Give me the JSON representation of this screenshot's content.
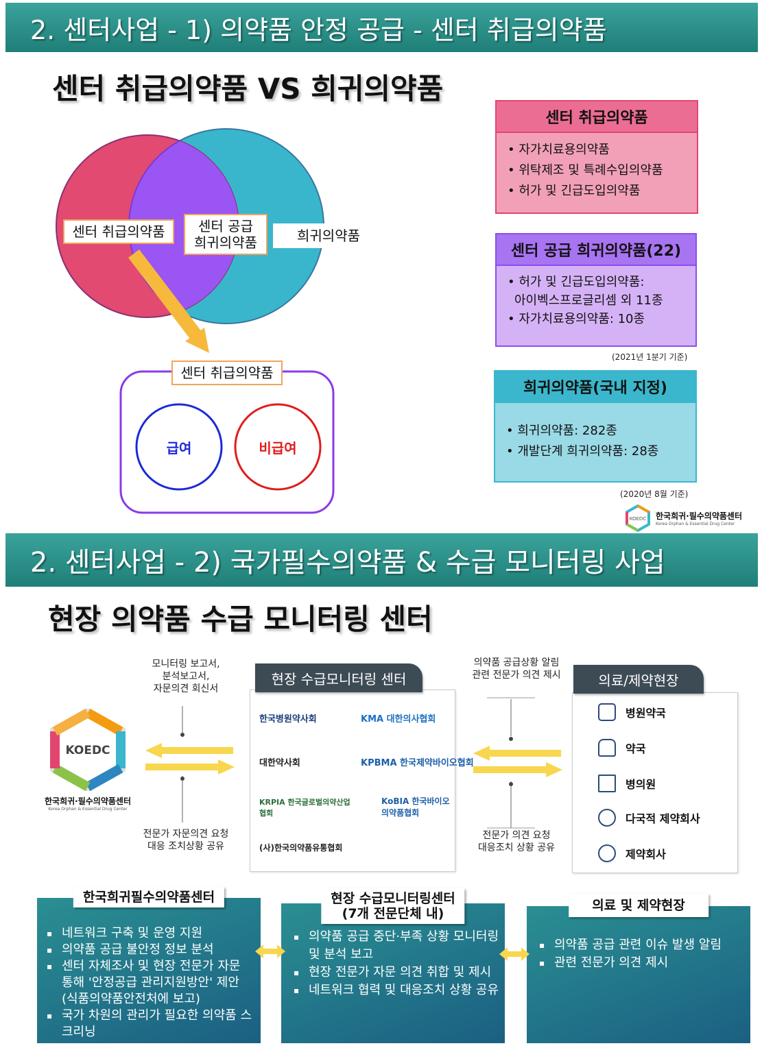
{
  "section1": {
    "banner": "2. 센터사업 - 1) 의약품 안정 공급 - 센터 취급의약품",
    "title": "센터 취급의약품 VS 희귀의약품",
    "venn": {
      "left_label": "센터 취급의약품",
      "center_label_line1": "센터 공급",
      "center_label_line2": "희귀의약품",
      "right_label": "희귀의약품",
      "bottom_box_label": "센터 취급의약품",
      "circle_blue": "급여",
      "circle_red": "비급여"
    },
    "box_pink": {
      "title": "센터 취급의약품",
      "items": [
        "자가치료용의약품",
        "위탁제조 및 특례수입의약품",
        "허가 및 긴급도입의약품"
      ]
    },
    "box_purple": {
      "title": "센터 공급 희귀의약품(22)",
      "item1_line1": "허가 및 긴급도입의약품:",
      "item1_line2": "아이벡스프로글리셈 외 11종",
      "item2": "자가치료용의약품: 10종",
      "note": "(2021년 1분기 기준)"
    },
    "box_cyan": {
      "title": "희귀의약품(국내 지정)",
      "items": [
        "희귀의약품: 282종",
        "개발단계 희귀의약품: 28종"
      ],
      "note": "(2020년 8월 기준)"
    },
    "logo_name": "한국희귀·필수의약품센터",
    "logo_sub": "Korea Orphan & Essential Drug Center",
    "logo_mark": "KOEDC"
  },
  "section2": {
    "banner": "2. 센터사업 - 2)  국가필수의약품 & 수급 모니터링 사업",
    "title": "현장 의약품 수급 모니터링 센터",
    "left_top_text": [
      "모니터링 보고서,",
      "분석보고서,",
      "자문의견 회신서"
    ],
    "left_bottom_text": [
      "전문가 자문의견 요청",
      "대응 조치상황 공유"
    ],
    "right_top_text": [
      "의약품 공급상황 알림",
      "관련 전문가 의견 제시"
    ],
    "right_bottom_text": [
      "전문가 의견 요청",
      "대응조치 상황 공유"
    ],
    "koedc_mark": "KOEDC",
    "koedc_name": "한국희귀·필수의약품센터",
    "koedc_sub": "Korea Orphan & Essential Drug Center",
    "center_tab": "현장 수급모니터링 센터",
    "orgs": [
      "한국병원약사회",
      "KMA 대한의사협회",
      "대한약사회",
      "KPBMA 한국제약바이오협회",
      "KRPIA 한국글로벌의약산업협회",
      "KoBIA 한국바이오의약품협회",
      "(사)한국의약품유통협회"
    ],
    "site_tab": "의료/제약현장",
    "sites": [
      "병원약국",
      "약국",
      "병의원",
      "다국적 제약회사",
      "제약회사"
    ],
    "panels": [
      {
        "tag": "한국희귀필수의약품센터",
        "items": [
          "네트워크 구축 및 운영 지원",
          "의약품 공급 불안정 정보 분석",
          "센터 자체조사 및 현장 전문가 자문 통해 '안정공급 관리지원방안' 제안(식품의약품안전처에 보고)",
          "국가 차원의 관리가 필요한 의약품 스크리닝"
        ]
      },
      {
        "tag_line1": "현장 수급모니터링센터",
        "tag_line2": "(7개 전문단체 내)",
        "items": [
          "의약품 공급 중단·부족 상황 모니터링 및 분석 보고",
          "현장 전문가 자문 의견 취합 및 제시",
          "네트워크 협력 및 대응조치 상황 공유"
        ]
      },
      {
        "tag": "의료 및 제약현장",
        "items": [
          "의약품 공급 관련 이슈 발생 알림",
          "관련 전문가 의견 제시"
        ]
      }
    ]
  },
  "colors": {
    "banner": "#2a9690",
    "pink": "#e2456f",
    "purple": "#8a4ff0",
    "cyan": "#3ab7cc",
    "arrow": "#f6b93b"
  }
}
